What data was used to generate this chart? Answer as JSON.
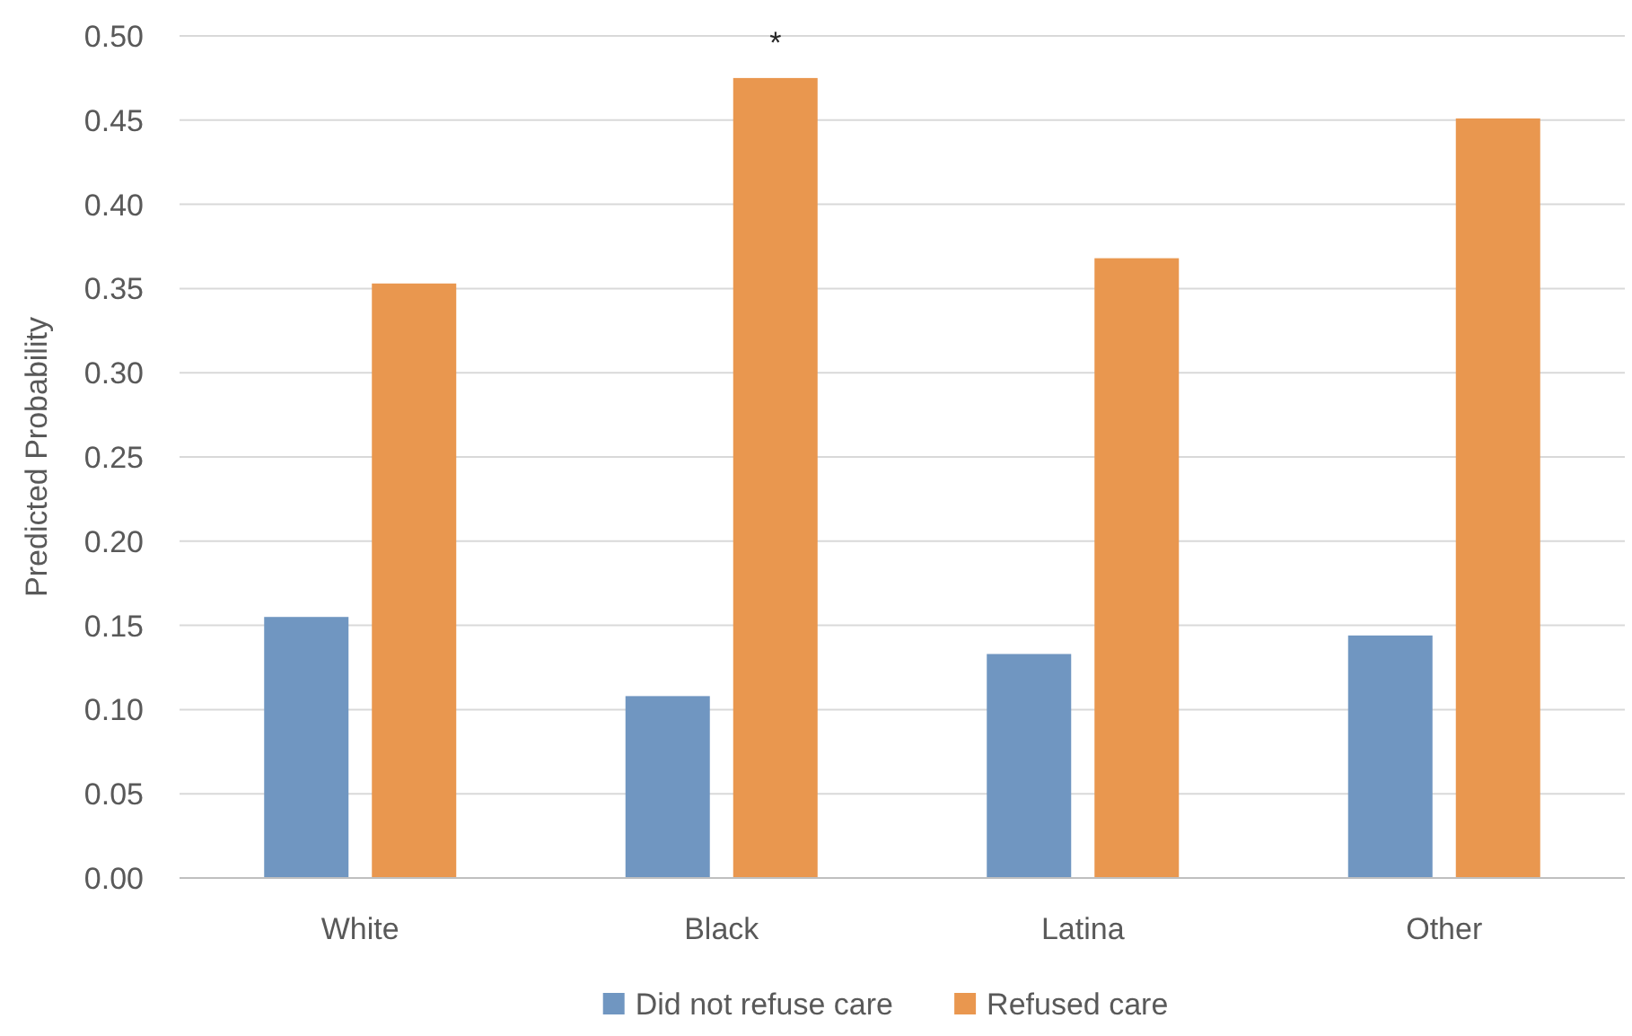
{
  "chart_data": {
    "type": "bar",
    "ylabel": "Predicted Probability",
    "categories": [
      "White",
      "Black",
      "Latina",
      "Other"
    ],
    "series": [
      {
        "name": "Did not refuse care",
        "color": "#7096c1",
        "values": [
          0.155,
          0.108,
          0.133,
          0.144
        ]
      },
      {
        "name": "Refused care",
        "color": "#e9974f",
        "values": [
          0.353,
          0.475,
          0.368,
          0.451
        ]
      }
    ],
    "ylim": [
      0,
      0.5
    ],
    "yticks": [
      {
        "value": 0,
        "label": "0.00"
      },
      {
        "value": 0.05,
        "label": "0.05"
      },
      {
        "value": 0.1,
        "label": "0.10"
      },
      {
        "value": 0.15,
        "label": "0.15"
      },
      {
        "value": 0.2,
        "label": "0.20"
      },
      {
        "value": 0.25,
        "label": "0.25"
      },
      {
        "value": 0.3,
        "label": "0.30"
      },
      {
        "value": 0.35,
        "label": "0.35"
      },
      {
        "value": 0.4,
        "label": "0.40"
      },
      {
        "value": 0.45,
        "label": "0.45"
      },
      {
        "value": 0.5,
        "label": "0.50"
      }
    ],
    "grid": "y",
    "legend": "bottom",
    "annotations": [
      "*"
    ]
  }
}
